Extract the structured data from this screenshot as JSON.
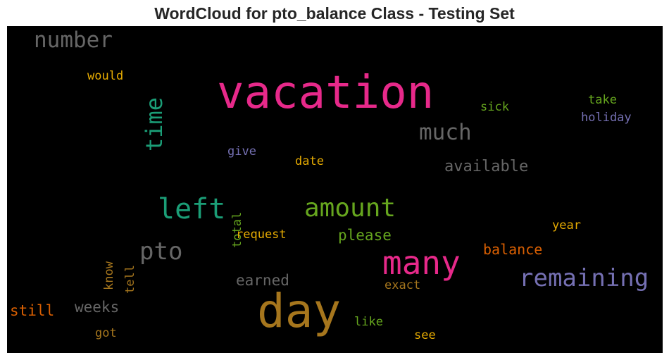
{
  "title": "WordCloud for pto_balance Class - Testing Set",
  "chart_data": {
    "type": "wordcloud",
    "title": "WordCloud for pto_balance Class - Testing Set",
    "background": "#000000",
    "words": [
      {
        "text": "vacation",
        "color": "#e7298a"
      },
      {
        "text": "day",
        "color": "#a6761d"
      },
      {
        "text": "many",
        "color": "#e7298a"
      },
      {
        "text": "remaining",
        "color": "#7570b3"
      },
      {
        "text": "left",
        "color": "#1b9e77"
      },
      {
        "text": "amount",
        "color": "#66a61e"
      },
      {
        "text": "time",
        "color": "#1b9e77",
        "orientation": "vertical"
      },
      {
        "text": "number",
        "color": "#666666"
      },
      {
        "text": "much",
        "color": "#666666"
      },
      {
        "text": "pto",
        "color": "#666666"
      },
      {
        "text": "available",
        "color": "#666666"
      },
      {
        "text": "balance",
        "color": "#d95f02"
      },
      {
        "text": "please",
        "color": "#66a61e"
      },
      {
        "text": "earned",
        "color": "#666666"
      },
      {
        "text": "weeks",
        "color": "#666666"
      },
      {
        "text": "still",
        "color": "#d95f02"
      },
      {
        "text": "would",
        "color": "#e6ab02"
      },
      {
        "text": "sick",
        "color": "#66a61e"
      },
      {
        "text": "take",
        "color": "#66a61e"
      },
      {
        "text": "holiday",
        "color": "#7570b3"
      },
      {
        "text": "give",
        "color": "#7570b3"
      },
      {
        "text": "date",
        "color": "#e6ab02"
      },
      {
        "text": "total",
        "color": "#66a61e",
        "orientation": "vertical"
      },
      {
        "text": "request",
        "color": "#e6ab02"
      },
      {
        "text": "year",
        "color": "#e6ab02"
      },
      {
        "text": "know",
        "color": "#a6761d",
        "orientation": "vertical"
      },
      {
        "text": "tell",
        "color": "#a6761d",
        "orientation": "vertical"
      },
      {
        "text": "exact",
        "color": "#a6761d"
      },
      {
        "text": "got",
        "color": "#a6761d"
      },
      {
        "text": "like",
        "color": "#66a61e"
      },
      {
        "text": "see",
        "color": "#e6ab02"
      }
    ]
  }
}
